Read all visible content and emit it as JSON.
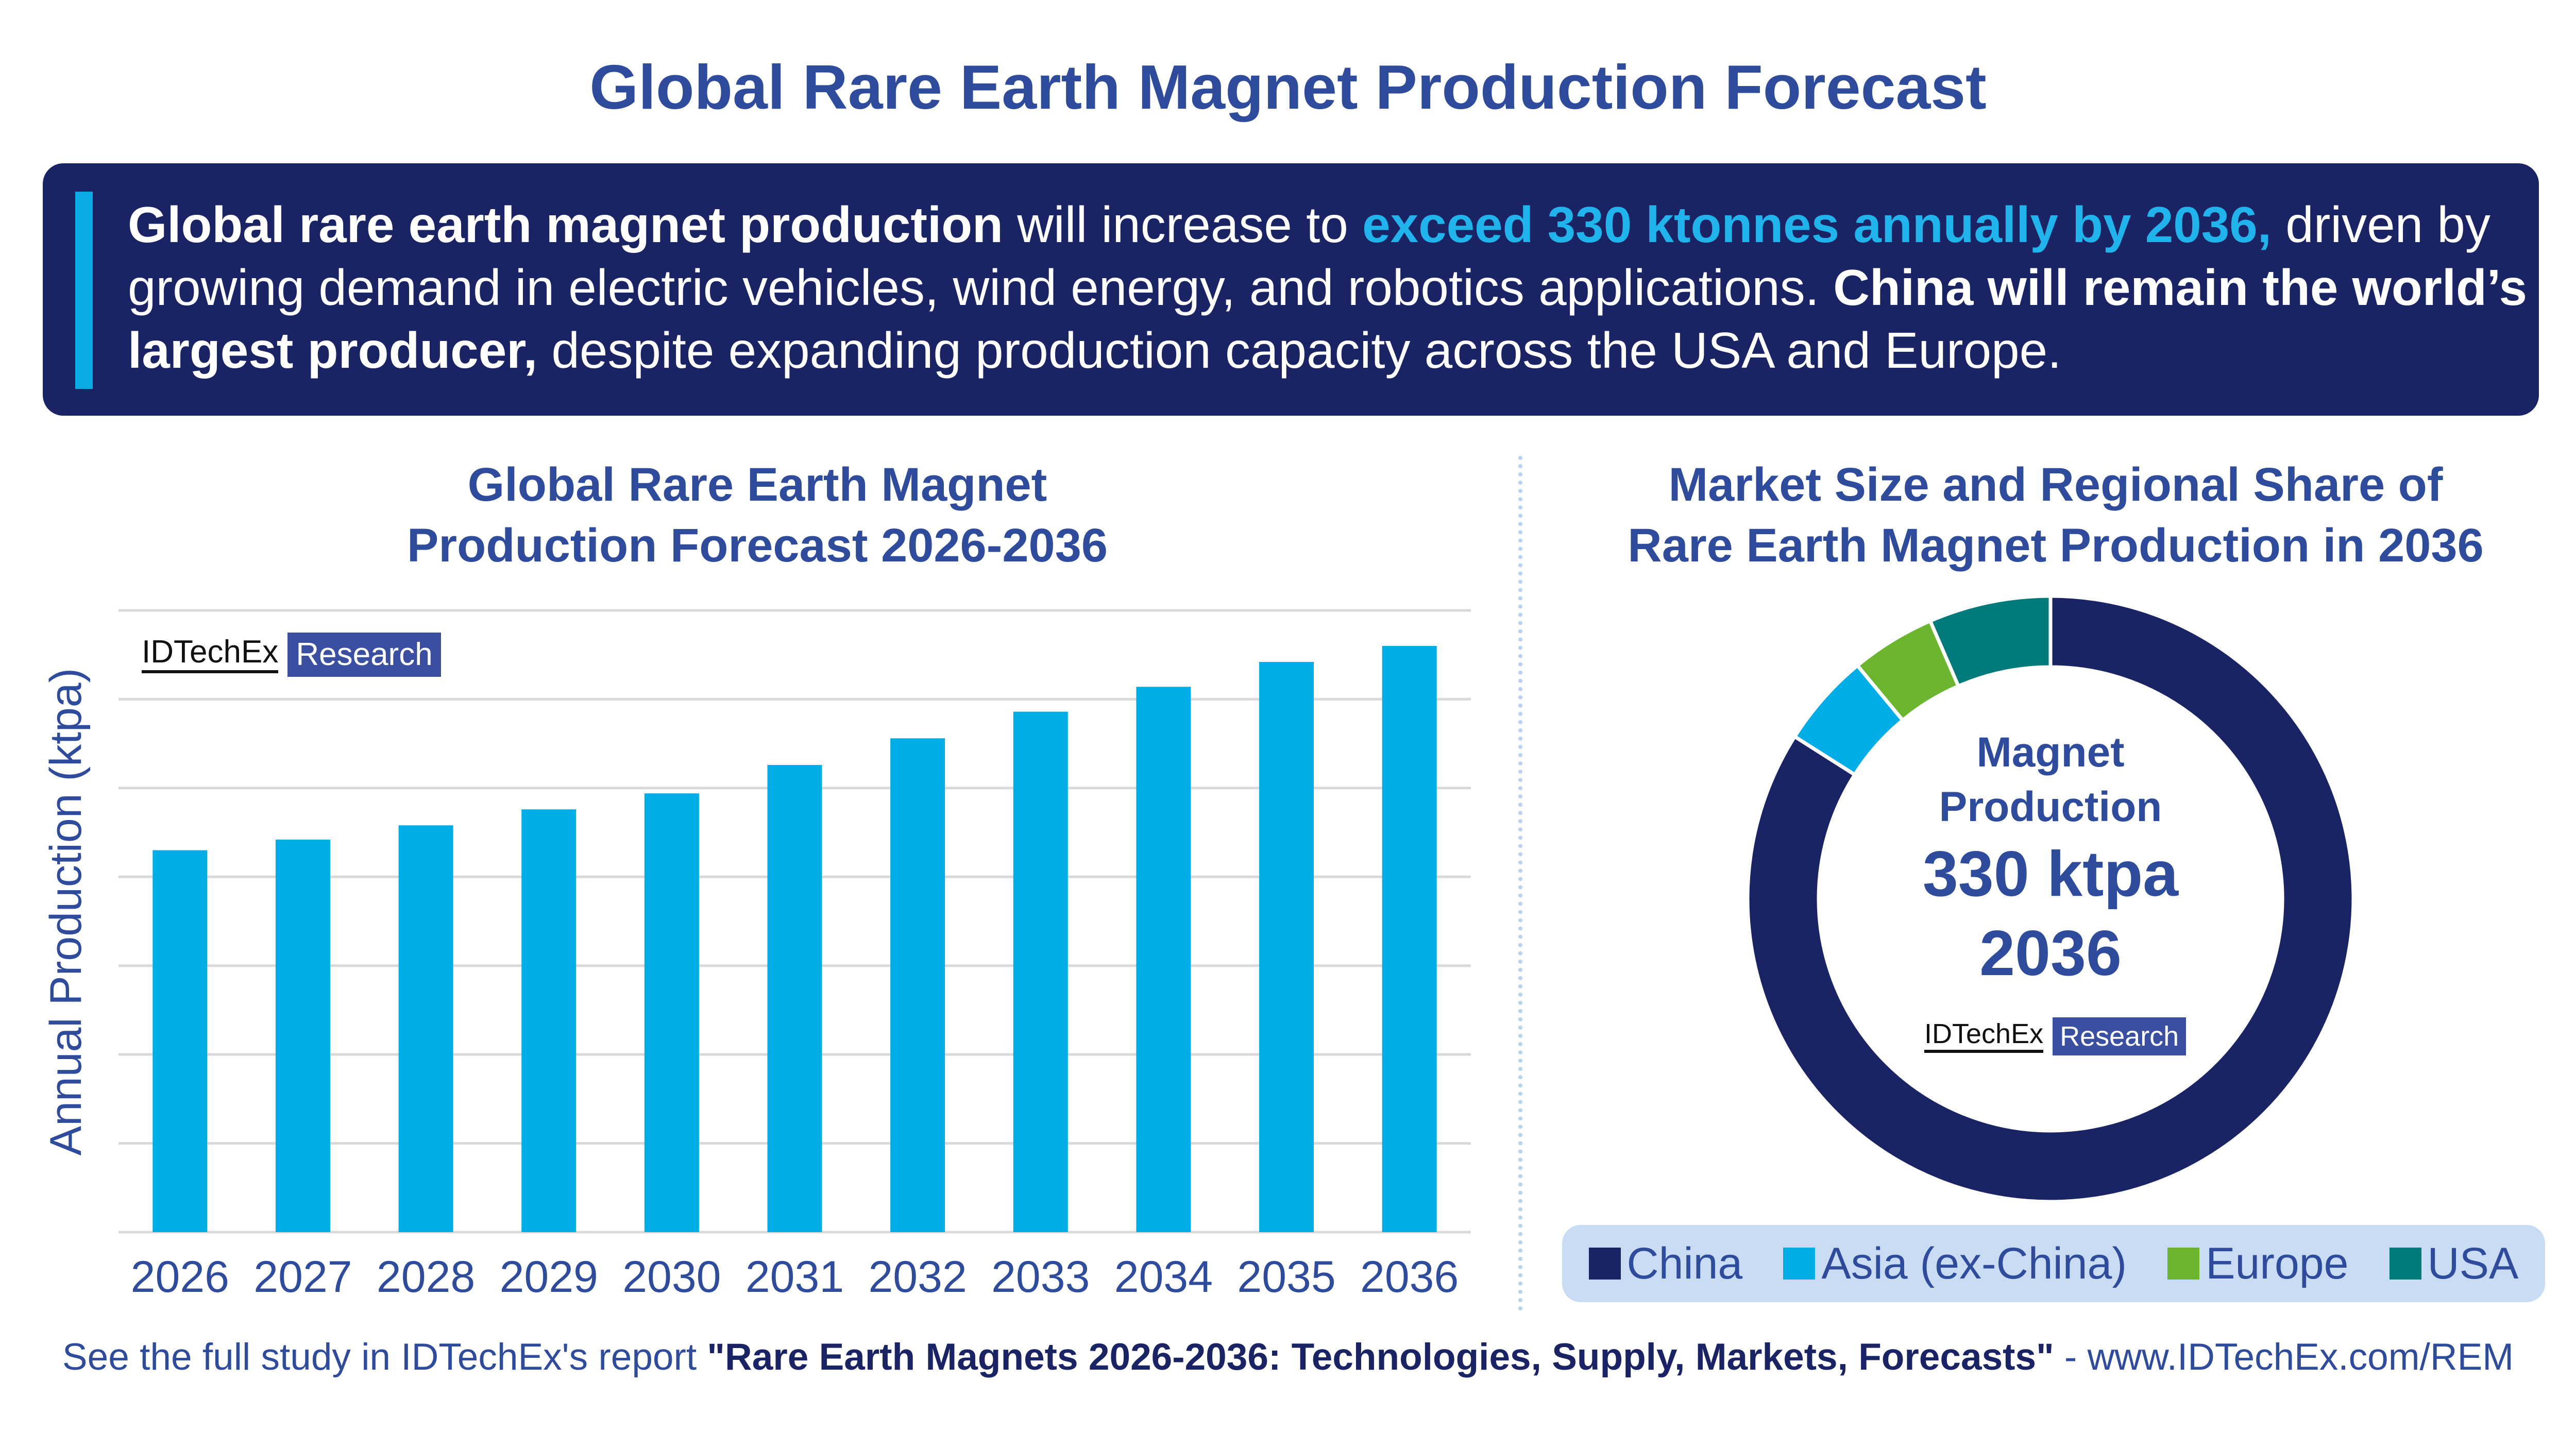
{
  "header": {
    "title": "Global Rare Earth Magnet Production Forecast"
  },
  "banner": {
    "seg1": "Global rare earth magnet production",
    "seg2": " will increase to ",
    "seg3": "exceed 330 ktonnes annually by 2036,",
    "seg4": " driven by growing demand in electric vehicles, wind energy, and robotics applications. ",
    "seg5": "China will remain the world’s largest producer,",
    "seg6": " despite expanding production capacity across the USA and Europe."
  },
  "bar_section": {
    "title_line1": "Global Rare Earth Magnet",
    "title_line2": "Production Forecast 2026-2036"
  },
  "donut_section": {
    "title_line1": "Market Size and Regional Share of",
    "title_line2": "Rare Earth Magnet Production in 2036",
    "center_line1": "Magnet",
    "center_line2": "Production",
    "center_value": "330 ktpa",
    "center_year": "2036"
  },
  "logo": {
    "name": "IDTechEx",
    "tag": "Research"
  },
  "footer": {
    "prefix": "See the full study in IDTechEx's report ",
    "report": "\"Rare Earth Magnets 2026-2036: Technologies, Supply, Markets, Forecasts\"",
    "suffix": " - www.IDTechEx.com/REM"
  },
  "colors": {
    "title": "#2e4b9c",
    "banner_bg": "#1a2464",
    "bar": "#00ade6",
    "china": "#1a2464",
    "asia": "#00ade6",
    "europe": "#6cb52e",
    "usa": "#007a7a"
  },
  "chart_data": [
    {
      "type": "bar",
      "title": "Global Rare Earth Magnet Production Forecast 2026-2036",
      "xlabel": "",
      "ylabel": "Annual Production (ktpa)",
      "categories": [
        "2026",
        "2027",
        "2028",
        "2029",
        "2030",
        "2031",
        "2032",
        "2033",
        "2034",
        "2035",
        "2036"
      ],
      "values": [
        215,
        221,
        229,
        238,
        247,
        263,
        278,
        293,
        307,
        321,
        330
      ],
      "ylim": [
        0,
        350
      ],
      "grid": true,
      "y_tick_labels_shown": false,
      "color": "#00ade6"
    },
    {
      "type": "pie",
      "style": "donut",
      "title": "Market Size and Regional Share of Rare Earth Magnet Production in 2036",
      "total": "330 ktpa",
      "categories": [
        "China",
        "Asia (ex-China)",
        "Europe",
        "USA"
      ],
      "values": [
        84,
        5,
        4.5,
        6.5
      ],
      "unit": "%",
      "colors": [
        "#1a2464",
        "#00ade6",
        "#6cb52e",
        "#007a7a"
      ],
      "legend": "bottom"
    }
  ]
}
